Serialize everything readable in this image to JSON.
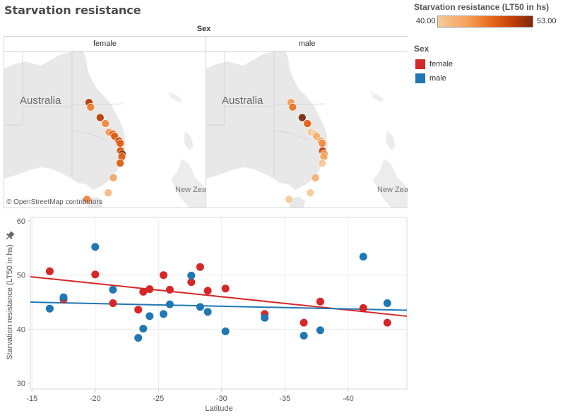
{
  "header": {
    "title": "Starvation resistance",
    "facet_header": "Sex"
  },
  "map_panels": [
    {
      "label": "female",
      "country_label": "Australia",
      "nz_label": "New Zea"
    },
    {
      "label": "male",
      "country_label": "Australia",
      "nz_label": "New Zea"
    }
  ],
  "map_attribution": "© OpenStreetMap contributors",
  "color_legend": {
    "title": "Starvation resistance (LT50 in hs)",
    "min_label": "40.00",
    "max_label": "53.00",
    "min": 40,
    "max": 53,
    "stops": [
      "#f6c99a",
      "#f6a35b",
      "#ea6a1c",
      "#c44103",
      "#7b2a0c"
    ]
  },
  "sex_legend": {
    "title": "Sex",
    "items": [
      {
        "label": "female",
        "color": "#d62728"
      },
      {
        "label": "male",
        "color": "#1f77b4"
      }
    ]
  },
  "chart_data": {
    "type": "scatter",
    "title": "",
    "xlabel": "Latitude",
    "ylabel": "Starvation resistance (LT50 in hs)",
    "xlim": [
      -14.9,
      -44.7
    ],
    "ylim": [
      30,
      60
    ],
    "x_ticks": [
      "-15",
      "-20",
      "-25",
      "-30",
      "-35",
      "-40"
    ],
    "x_tick_values": [
      -15,
      -20,
      -25,
      -30,
      -35,
      -40
    ],
    "y_ticks": [
      "60",
      "50",
      "40",
      "30"
    ],
    "y_tick_values": [
      60,
      50,
      40,
      30
    ],
    "grid": true,
    "legend": "right",
    "sites_longitude": [
      145.7,
      146.1,
      148.5,
      149.8,
      150.7,
      151.7,
      152.1,
      153.2,
      153.5,
      153.6,
      154.0,
      153.9,
      153.5,
      151.8,
      150.5,
      145.2,
      147.5,
      147.5
    ],
    "series": [
      {
        "name": "female",
        "color": "#d62728",
        "x": [
          -16.4,
          -17.5,
          -20.0,
          -21.4,
          -23.4,
          -23.8,
          -24.3,
          -25.4,
          -25.9,
          -27.6,
          -28.3,
          -28.9,
          -30.3,
          -33.4,
          -36.5,
          -37.8,
          -41.2,
          -43.1
        ],
        "y": [
          50.7,
          45.5,
          50.1,
          44.8,
          43.6,
          46.9,
          47.4,
          50.0,
          47.3,
          48.7,
          51.5,
          47.1,
          47.5,
          42.8,
          41.2,
          45.1,
          43.9,
          41.2
        ],
        "trend": {
          "x": [
            -14.9,
            -44.7
          ],
          "y": [
            49.7,
            42.4
          ]
        }
      },
      {
        "name": "male",
        "color": "#1f77b4",
        "x": [
          -16.4,
          -17.5,
          -20.0,
          -21.4,
          -23.4,
          -23.8,
          -24.3,
          -25.4,
          -25.9,
          -27.6,
          -28.3,
          -28.9,
          -30.3,
          -33.4,
          -36.5,
          -37.8,
          -41.2,
          -43.1
        ],
        "y": [
          43.8,
          45.9,
          55.2,
          47.3,
          38.4,
          40.1,
          42.4,
          42.8,
          44.6,
          49.9,
          44.1,
          43.2,
          39.6,
          42.1,
          38.8,
          39.8,
          53.4,
          44.8
        ],
        "trend": {
          "x": [
            -14.9,
            -44.7
          ],
          "y": [
            45.0,
            43.5
          ]
        }
      }
    ]
  }
}
